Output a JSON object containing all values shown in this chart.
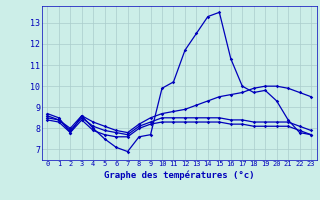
{
  "title": "Graphe des températures (°c)",
  "bg_color": "#cceee8",
  "grid_color": "#aacccc",
  "line_color": "#0000bb",
  "x_labels": [
    "0",
    "1",
    "2",
    "3",
    "4",
    "5",
    "6",
    "7",
    "8",
    "9",
    "10",
    "11",
    "12",
    "13",
    "14",
    "15",
    "16",
    "17",
    "18",
    "19",
    "20",
    "21",
    "22",
    "23"
  ],
  "ylim": [
    6.5,
    13.8
  ],
  "yticks": [
    7,
    8,
    9,
    10,
    11,
    12,
    13
  ],
  "series1": [
    8.7,
    8.5,
    7.8,
    8.6,
    8.0,
    7.5,
    7.1,
    6.9,
    7.6,
    7.7,
    9.9,
    10.2,
    11.7,
    12.5,
    13.3,
    13.5,
    11.3,
    10.0,
    9.7,
    9.8,
    9.3,
    8.4,
    7.8,
    7.7
  ],
  "series2": [
    8.6,
    8.4,
    8.0,
    8.6,
    8.3,
    8.1,
    7.9,
    7.8,
    8.2,
    8.5,
    8.7,
    8.8,
    8.9,
    9.1,
    9.3,
    9.5,
    9.6,
    9.7,
    9.9,
    10.0,
    10.0,
    9.9,
    9.7,
    9.5
  ],
  "series3": [
    8.5,
    8.4,
    7.9,
    8.5,
    8.1,
    7.9,
    7.8,
    7.7,
    8.1,
    8.3,
    8.5,
    8.5,
    8.5,
    8.5,
    8.5,
    8.5,
    8.4,
    8.4,
    8.3,
    8.3,
    8.3,
    8.3,
    8.1,
    7.9
  ],
  "series4": [
    8.4,
    8.3,
    7.8,
    8.4,
    7.9,
    7.7,
    7.6,
    7.6,
    8.0,
    8.2,
    8.3,
    8.3,
    8.3,
    8.3,
    8.3,
    8.3,
    8.2,
    8.2,
    8.1,
    8.1,
    8.1,
    8.1,
    7.9,
    7.7
  ]
}
